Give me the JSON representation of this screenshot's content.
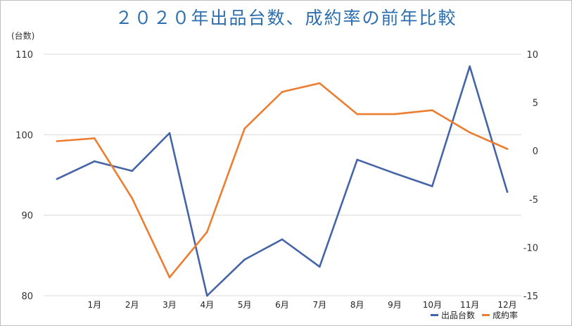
{
  "title": "２０２０年出品台数、成約率の前年比較",
  "y_unit_label": "(台数)",
  "colors": {
    "series1": "#4564a8",
    "series2": "#ed7d31",
    "grid": "#d9d9d9",
    "axis_text": "#333333"
  },
  "chart_data": {
    "type": "line",
    "title": "２０２０年出品台数、成約率の前年比較",
    "categories": [
      "",
      "1月",
      "2月",
      "3月",
      "4月",
      "5月",
      "6月",
      "7月",
      "8月",
      "9月",
      "10月",
      "11月",
      "12月"
    ],
    "ylim_left": [
      80,
      110
    ],
    "yticks_left": [
      80,
      90,
      100,
      110
    ],
    "ylim_right": [
      -15,
      10
    ],
    "yticks_right": [
      -15,
      -10,
      -5,
      0,
      5,
      10
    ],
    "ylabel": "(台数)",
    "grid": true,
    "legend_position": "bottom-right",
    "series": [
      {
        "name": "出品台数",
        "axis": "left",
        "color": "#4564a8",
        "values": [
          94.5,
          96.7,
          95.5,
          100.2,
          80,
          84.5,
          87,
          83.6,
          96.9,
          95.2,
          93.6,
          108.5,
          92.9
        ]
      },
      {
        "name": "成約率",
        "axis": "right",
        "color": "#ed7d31",
        "values": [
          1.0,
          1.3,
          -4.9,
          -13.1,
          -8.4,
          2.3,
          6.1,
          7.0,
          3.8,
          3.8,
          4.2,
          1.9,
          0.2
        ]
      }
    ]
  }
}
